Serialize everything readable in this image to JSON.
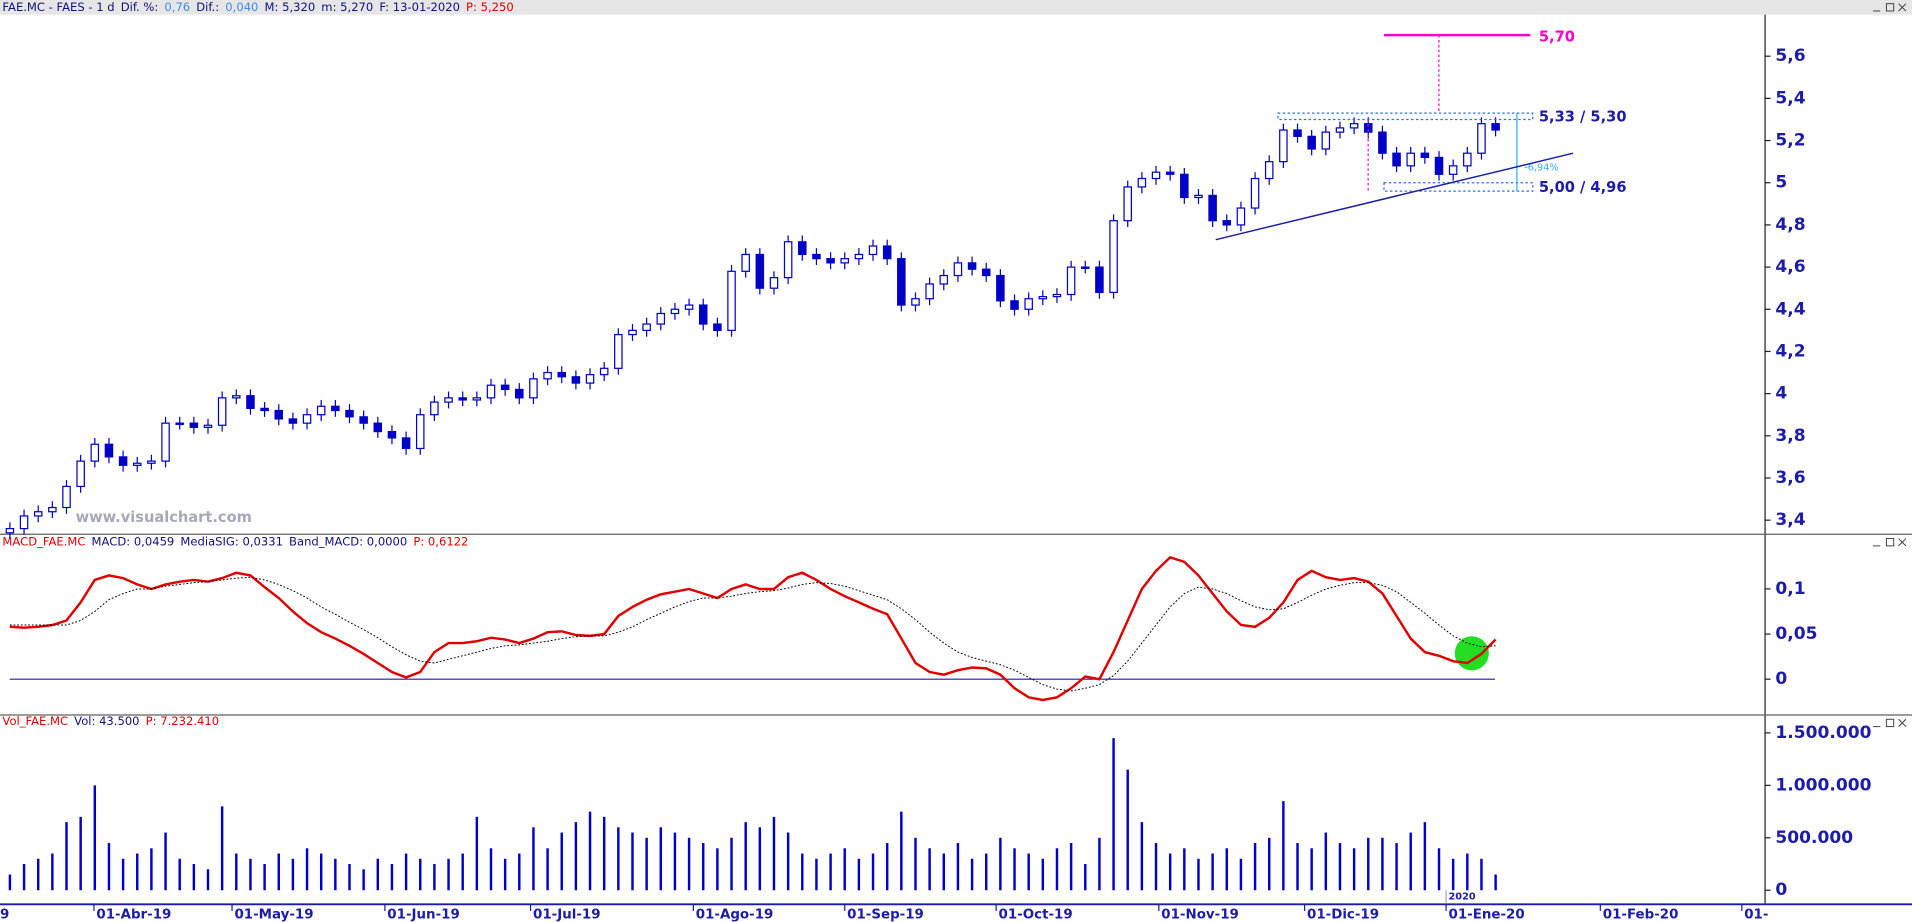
{
  "chart_data": [
    {
      "type": "candlestick",
      "header": [
        {
          "text": "FAE.MC - FAES - 1 d",
          "color": "#101080"
        },
        {
          "text": "Dif. %:",
          "color": "#101080"
        },
        {
          "text": "0,76",
          "color": "#3a8fe8"
        },
        {
          "text": "Dif.:",
          "color": "#101080"
        },
        {
          "text": "0,040",
          "color": "#3a8fe8"
        },
        {
          "text": "M: 5,320",
          "color": "#101080"
        },
        {
          "text": "m: 5,270",
          "color": "#101080"
        },
        {
          "text": "F: 13-01-2020",
          "color": "#101080"
        },
        {
          "text": "P: 5,250",
          "color": "#e00000"
        }
      ],
      "watermark": "www.visualchart.com",
      "color": "#0000c8",
      "xlim": [
        -0.7,
        124
      ],
      "ylim": [
        3.336,
        5.797
      ],
      "yticks": [
        {
          "value": 3.4,
          "label": "3,4"
        },
        {
          "value": 3.6,
          "label": "3,6"
        },
        {
          "value": 3.8,
          "label": "3,8"
        },
        4,
        {
          "value": 4.2,
          "label": "4,2"
        },
        {
          "value": 4.4,
          "label": "4,4"
        },
        {
          "value": 4.6,
          "label": "4,6"
        },
        {
          "value": 4.8,
          "label": "4,8"
        },
        5,
        {
          "value": 5.2,
          "label": "5,2"
        },
        {
          "value": 5.4,
          "label": "5,4"
        },
        {
          "value": 5.6,
          "label": "5,6"
        }
      ],
      "open": [
        3.34,
        3.36,
        3.42,
        3.44,
        3.46,
        3.56,
        3.68,
        3.76,
        3.7,
        3.66,
        3.67,
        3.68,
        3.86,
        3.86,
        3.84,
        3.85,
        3.98,
        3.99,
        3.93,
        3.92,
        3.88,
        3.86,
        3.9,
        3.94,
        3.92,
        3.89,
        3.86,
        3.82,
        3.79,
        3.74,
        3.9,
        3.96,
        3.98,
        3.97,
        3.98,
        4.04,
        4.02,
        3.98,
        4.07,
        4.1,
        4.08,
        4.05,
        4.09,
        4.12,
        4.28,
        4.3,
        4.33,
        4.38,
        4.4,
        4.42,
        4.33,
        4.3,
        4.58,
        4.66,
        4.5,
        4.55,
        4.72,
        4.66,
        4.64,
        4.62,
        4.64,
        4.66,
        4.7,
        4.64,
        4.42,
        4.45,
        4.52,
        4.56,
        4.62,
        4.59,
        4.56,
        4.44,
        4.4,
        4.45,
        4.46,
        4.47,
        4.6,
        4.6,
        4.48,
        4.82,
        4.98,
        5.02,
        5.05,
        5.04,
        4.93,
        4.94,
        4.82,
        4.8,
        4.88,
        5.02,
        5.1,
        5.25,
        5.22,
        5.16,
        5.24,
        5.26,
        5.28,
        5.24,
        5.14,
        5.08,
        5.14,
        5.12,
        5.04,
        5.08,
        5.14,
        5.28
      ],
      "high": [
        3.39,
        3.45,
        3.47,
        3.49,
        3.59,
        3.71,
        3.79,
        3.79,
        3.73,
        3.7,
        3.71,
        3.89,
        3.89,
        3.89,
        3.88,
        4.01,
        4.02,
        4.02,
        3.96,
        3.95,
        3.91,
        3.93,
        3.97,
        3.97,
        3.95,
        3.92,
        3.89,
        3.85,
        3.82,
        3.93,
        3.99,
        4.01,
        4.01,
        4.01,
        4.07,
        4.07,
        4.05,
        4.1,
        4.13,
        4.13,
        4.11,
        4.12,
        4.15,
        4.31,
        4.33,
        4.36,
        4.41,
        4.43,
        4.45,
        4.45,
        4.36,
        4.61,
        4.69,
        4.69,
        4.58,
        4.75,
        4.75,
        4.69,
        4.67,
        4.67,
        4.69,
        4.73,
        4.73,
        4.67,
        4.48,
        4.55,
        4.59,
        4.65,
        4.65,
        4.62,
        4.59,
        4.47,
        4.48,
        4.49,
        4.5,
        4.63,
        4.63,
        4.63,
        4.85,
        5.01,
        5.05,
        5.08,
        5.08,
        5.07,
        4.97,
        4.97,
        4.85,
        4.91,
        5.05,
        5.13,
        5.28,
        5.28,
        5.25,
        5.27,
        5.29,
        5.31,
        5.31,
        5.27,
        5.17,
        5.17,
        5.17,
        5.15,
        5.11,
        5.17,
        5.31,
        5.31
      ],
      "low": [
        3.31,
        3.33,
        3.39,
        3.41,
        3.43,
        3.53,
        3.65,
        3.67,
        3.63,
        3.63,
        3.64,
        3.65,
        3.83,
        3.81,
        3.81,
        3.82,
        3.95,
        3.9,
        3.89,
        3.85,
        3.83,
        3.83,
        3.87,
        3.89,
        3.86,
        3.83,
        3.79,
        3.76,
        3.71,
        3.71,
        3.87,
        3.93,
        3.94,
        3.94,
        3.95,
        3.99,
        3.95,
        3.95,
        4.04,
        4.05,
        4.02,
        4.02,
        4.06,
        4.09,
        4.25,
        4.27,
        4.3,
        4.35,
        4.37,
        4.3,
        4.27,
        4.27,
        4.55,
        4.47,
        4.47,
        4.52,
        4.63,
        4.61,
        4.59,
        4.59,
        4.61,
        4.63,
        4.61,
        4.39,
        4.39,
        4.42,
        4.49,
        4.53,
        4.56,
        4.53,
        4.41,
        4.37,
        4.37,
        4.42,
        4.43,
        4.44,
        4.57,
        4.45,
        4.45,
        4.79,
        4.95,
        4.99,
        5.01,
        4.9,
        4.9,
        4.79,
        4.77,
        4.77,
        4.85,
        4.99,
        5.07,
        5.19,
        5.13,
        5.13,
        5.21,
        5.23,
        5.21,
        5.11,
        5.05,
        5.05,
        5.09,
        5.01,
        5.01,
        5.05,
        5.11,
        5.22
      ],
      "close": [
        3.36,
        3.42,
        3.44,
        3.46,
        3.56,
        3.68,
        3.76,
        3.7,
        3.66,
        3.67,
        3.68,
        3.86,
        3.86,
        3.84,
        3.85,
        3.98,
        3.99,
        3.93,
        3.92,
        3.88,
        3.86,
        3.9,
        3.94,
        3.92,
        3.89,
        3.86,
        3.82,
        3.79,
        3.74,
        3.9,
        3.96,
        3.98,
        3.97,
        3.98,
        4.04,
        4.02,
        3.98,
        4.07,
        4.1,
        4.08,
        4.05,
        4.09,
        4.12,
        4.28,
        4.3,
        4.33,
        4.38,
        4.4,
        4.42,
        4.33,
        4.3,
        4.58,
        4.66,
        4.5,
        4.55,
        4.72,
        4.66,
        4.64,
        4.62,
        4.64,
        4.66,
        4.7,
        4.64,
        4.42,
        4.45,
        4.52,
        4.56,
        4.62,
        4.59,
        4.56,
        4.44,
        4.4,
        4.45,
        4.46,
        4.47,
        4.6,
        4.6,
        4.48,
        4.82,
        4.98,
        5.02,
        5.05,
        5.04,
        4.93,
        4.94,
        4.82,
        4.8,
        4.88,
        5.02,
        5.1,
        5.25,
        5.22,
        5.16,
        5.24,
        5.26,
        5.28,
        5.24,
        5.14,
        5.08,
        5.14,
        5.12,
        5.04,
        5.08,
        5.14,
        5.28,
        5.25
      ],
      "annotations": {
        "target": {
          "value": 5.7,
          "label": "5,70",
          "color": "#ff00cc"
        },
        "resistance": {
          "high": 5.33,
          "low": 5.3,
          "label": "5,33 / 5,30"
        },
        "support": {
          "high": 5.0,
          "low": 4.96,
          "label": "5,00 / 4,96"
        },
        "range_pct": "-6,94%",
        "trendline": {
          "start": 4.73,
          "end": 5.14
        }
      }
    },
    {
      "type": "line",
      "header": [
        {
          "text": "MACD_FAE.MC",
          "color": "#e00000"
        },
        {
          "text": "MACD: 0,0459",
          "color": "#101080"
        },
        {
          "text": "MediaSIG: 0,0331",
          "color": "#101080"
        },
        {
          "text": "Band_MACD: 0,0000",
          "color": "#101080"
        },
        {
          "text": "P: 0,6122",
          "color": "#e00000"
        }
      ],
      "xlim": [
        -0.7,
        124
      ],
      "ylim": [
        -0.039,
        0.145
      ],
      "yticks": [
        {
          "value": 0.1,
          "label": "0,1"
        },
        {
          "value": 0.05,
          "label": "0,05"
        },
        0
      ],
      "series": [
        {
          "name": "MACD",
          "color": "#e00000",
          "values": [
            0.058,
            0.057,
            0.058,
            0.06,
            0.065,
            0.085,
            0.11,
            0.115,
            0.112,
            0.105,
            0.1,
            0.105,
            0.108,
            0.11,
            0.108,
            0.112,
            0.118,
            0.115,
            0.102,
            0.09,
            0.075,
            0.062,
            0.052,
            0.045,
            0.037,
            0.028,
            0.018,
            0.008,
            0.002,
            0.008,
            0.03,
            0.04,
            0.04,
            0.042,
            0.046,
            0.044,
            0.04,
            0.045,
            0.052,
            0.053,
            0.049,
            0.048,
            0.05,
            0.07,
            0.08,
            0.088,
            0.094,
            0.097,
            0.1,
            0.095,
            0.09,
            0.1,
            0.105,
            0.1,
            0.1,
            0.113,
            0.118,
            0.11,
            0.1,
            0.092,
            0.085,
            0.078,
            0.072,
            0.045,
            0.018,
            0.008,
            0.005,
            0.01,
            0.013,
            0.012,
            0.005,
            -0.01,
            -0.02,
            -0.023,
            -0.02,
            -0.01,
            0.003,
            0.0,
            0.03,
            0.065,
            0.1,
            0.12,
            0.135,
            0.13,
            0.115,
            0.095,
            0.075,
            0.06,
            0.058,
            0.068,
            0.085,
            0.11,
            0.12,
            0.113,
            0.11,
            0.112,
            0.108,
            0.095,
            0.07,
            0.045,
            0.03,
            0.026,
            0.02,
            0.018,
            0.028,
            0.044
          ]
        },
        {
          "name": "MediaSIG",
          "color": "#000000",
          "values": [
            0.06,
            0.06,
            0.06,
            0.06,
            0.06,
            0.065,
            0.075,
            0.088,
            0.095,
            0.1,
            0.1,
            0.103,
            0.105,
            0.107,
            0.108,
            0.11,
            0.112,
            0.113,
            0.11,
            0.105,
            0.098,
            0.09,
            0.08,
            0.072,
            0.063,
            0.055,
            0.046,
            0.036,
            0.027,
            0.02,
            0.018,
            0.022,
            0.026,
            0.03,
            0.034,
            0.037,
            0.038,
            0.04,
            0.042,
            0.045,
            0.047,
            0.048,
            0.048,
            0.052,
            0.058,
            0.066,
            0.073,
            0.08,
            0.086,
            0.09,
            0.09,
            0.092,
            0.095,
            0.097,
            0.098,
            0.101,
            0.105,
            0.107,
            0.106,
            0.103,
            0.098,
            0.093,
            0.088,
            0.078,
            0.066,
            0.052,
            0.04,
            0.03,
            0.024,
            0.02,
            0.016,
            0.01,
            0.002,
            -0.006,
            -0.011,
            -0.013,
            -0.01,
            -0.006,
            0.004,
            0.02,
            0.04,
            0.06,
            0.08,
            0.095,
            0.102,
            0.1,
            0.095,
            0.087,
            0.08,
            0.077,
            0.078,
            0.085,
            0.093,
            0.1,
            0.104,
            0.107,
            0.107,
            0.104,
            0.097,
            0.085,
            0.073,
            0.06,
            0.048,
            0.04,
            0.036,
            0.037
          ]
        }
      ]
    },
    {
      "type": "bar",
      "header": [
        {
          "text": "Vol_FAE.MC",
          "color": "#e00000"
        },
        {
          "text": "Vol: 43.500",
          "color": "#101080"
        },
        {
          "text": "P: 7.232.410",
          "color": "#e00000"
        }
      ],
      "color": "#0000c8",
      "xlim": [
        -0.7,
        124
      ],
      "ylim": [
        0,
        1560000
      ],
      "yticks": [
        0,
        {
          "value": 500000,
          "label": "500.000"
        },
        {
          "value": 1000000,
          "label": "1.000.000"
        },
        {
          "value": 1500000,
          "label": "1.500.000"
        }
      ],
      "xticks": [
        {
          "value": 5.94,
          "label": "01-Abr-19"
        },
        {
          "value": 15.7,
          "label": "01-May-19"
        },
        {
          "value": 26.5,
          "label": "01-Jun-19"
        },
        {
          "value": 36.8,
          "label": "01-Jul-19"
        },
        {
          "value": 48.3,
          "label": "01-Ago-19"
        },
        {
          "value": 59.0,
          "label": "01-Sep-19"
        },
        {
          "value": 69.7,
          "label": "01-Oct-19"
        },
        {
          "value": 81.2,
          "label": "01-Nov-19"
        },
        {
          "value": 91.5,
          "label": "01-Dic-19"
        },
        {
          "value": 101.5,
          "label": "01-Ene-20"
        },
        {
          "value": 112.4,
          "label": "01-Feb-20"
        },
        {
          "value": 122.4,
          "label": "01-"
        }
      ],
      "year_label": "2020",
      "edge_label": "9",
      "values": [
        150000,
        250000,
        300000,
        350000,
        650000,
        700000,
        1000000,
        450000,
        300000,
        350000,
        400000,
        550000,
        300000,
        250000,
        200000,
        800000,
        350000,
        300000,
        250000,
        350000,
        300000,
        400000,
        350000,
        300000,
        250000,
        200000,
        300000,
        250000,
        350000,
        300000,
        250000,
        300000,
        350000,
        700000,
        400000,
        300000,
        350000,
        600000,
        400000,
        550000,
        650000,
        750000,
        700000,
        600000,
        550000,
        500000,
        600000,
        550000,
        500000,
        450000,
        400000,
        500000,
        650000,
        600000,
        700000,
        550000,
        350000,
        300000,
        350000,
        400000,
        300000,
        350000,
        450000,
        750000,
        500000,
        400000,
        350000,
        450000,
        300000,
        350000,
        500000,
        400000,
        350000,
        300000,
        400000,
        450000,
        250000,
        500000,
        1450000,
        1150000,
        650000,
        450000,
        350000,
        400000,
        300000,
        350000,
        400000,
        300000,
        450000,
        500000,
        850000,
        450000,
        400000,
        550000,
        450000,
        400000,
        500000,
        500000,
        450000,
        550000,
        650000,
        400000,
        300000,
        350000,
        300000,
        150000
      ]
    }
  ]
}
